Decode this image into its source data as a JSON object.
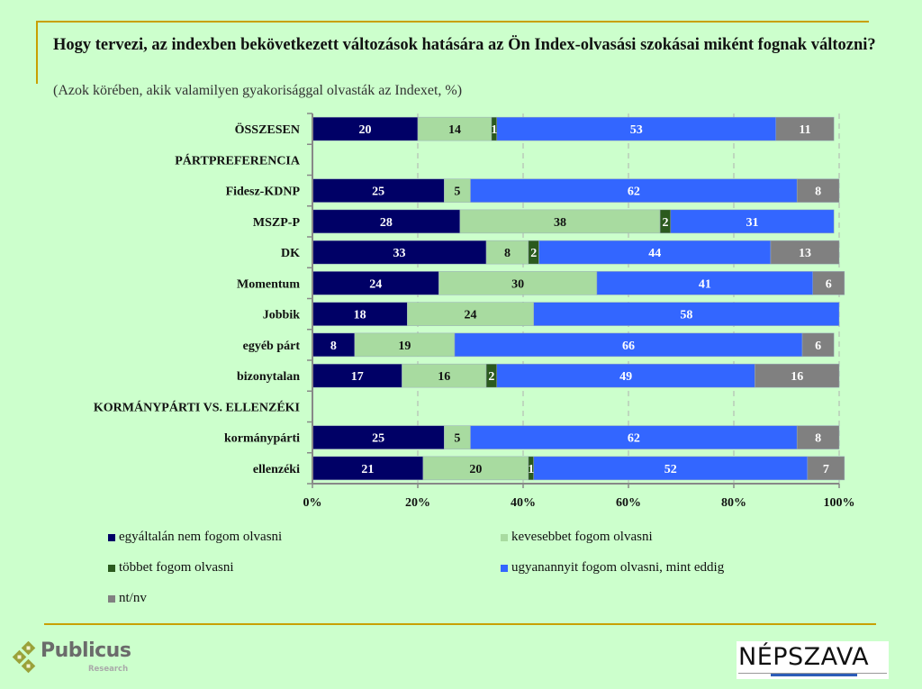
{
  "title": "Hogy tervezi, az indexben bekövetkezett változások hatására az Ön Index-olvasási szokásai miként fognak változni?",
  "subtitle": "(Azok körében, akik valamilyen gyakorisággal olvasták az Indexet, %)",
  "logos": {
    "left_name": "Publicus",
    "left_sub": "Research",
    "right_name": "NÉPSZAVA"
  },
  "colors": {
    "background": "#ccffcc",
    "frame": "#c8a000"
  },
  "chart_data": {
    "type": "bar",
    "orientation": "horizontal",
    "stacked": "percent",
    "title": "Hogy tervezi, az indexben bekövetkezett változások hatására az Ön Index-olvasási szokásai miként fognak változni?",
    "subtitle": "(Azok körében, akik valamilyen gyakorisággal olvasták az Indexet, %)",
    "xlabel": "",
    "ylabel": "",
    "xlim": [
      0,
      100
    ],
    "x_ticks": [
      "0%",
      "20%",
      "40%",
      "60%",
      "80%",
      "100%"
    ],
    "grid": "vertical dashed",
    "legend_position": "bottom",
    "categories": [
      "ÖSSZESEN",
      "PÁRTPREFERENCIA",
      "Fidesz-KDNP",
      "MSZP-P",
      "DK",
      "Momentum",
      "Jobbik",
      "egyéb párt",
      "bizonytalan",
      "KORMÁNYPÁRTI VS. ELLENZÉKI",
      "kormánypárti",
      "ellenzéki"
    ],
    "series": [
      {
        "name": "egyáltalán nem fogom olvasni",
        "color": "#000066",
        "label_color": "#ffffff",
        "values": [
          20,
          null,
          25,
          28,
          33,
          24,
          18,
          8,
          17,
          null,
          25,
          21
        ]
      },
      {
        "name": "kevesebbet fogom olvasni",
        "color": "#a8dba0",
        "label_color": "#111111",
        "values": [
          14,
          null,
          5,
          38,
          8,
          30,
          24,
          19,
          16,
          null,
          5,
          20
        ]
      },
      {
        "name": "többet fogom olvasni",
        "color": "#2b5a1e",
        "label_color": "#ffffff",
        "values": [
          1,
          null,
          0,
          2,
          2,
          0,
          0,
          0,
          2,
          null,
          0,
          1
        ]
      },
      {
        "name": "ugyanannyit fogom olvasni, mint eddig",
        "color": "#3366ff",
        "label_color": "#ffffff",
        "values": [
          53,
          null,
          62,
          31,
          44,
          41,
          58,
          66,
          49,
          null,
          62,
          52
        ]
      },
      {
        "name": "nt/nv",
        "color": "#808080",
        "label_color": "#ffffff",
        "values": [
          11,
          null,
          8,
          0,
          13,
          6,
          0,
          6,
          16,
          null,
          8,
          7
        ]
      }
    ]
  }
}
